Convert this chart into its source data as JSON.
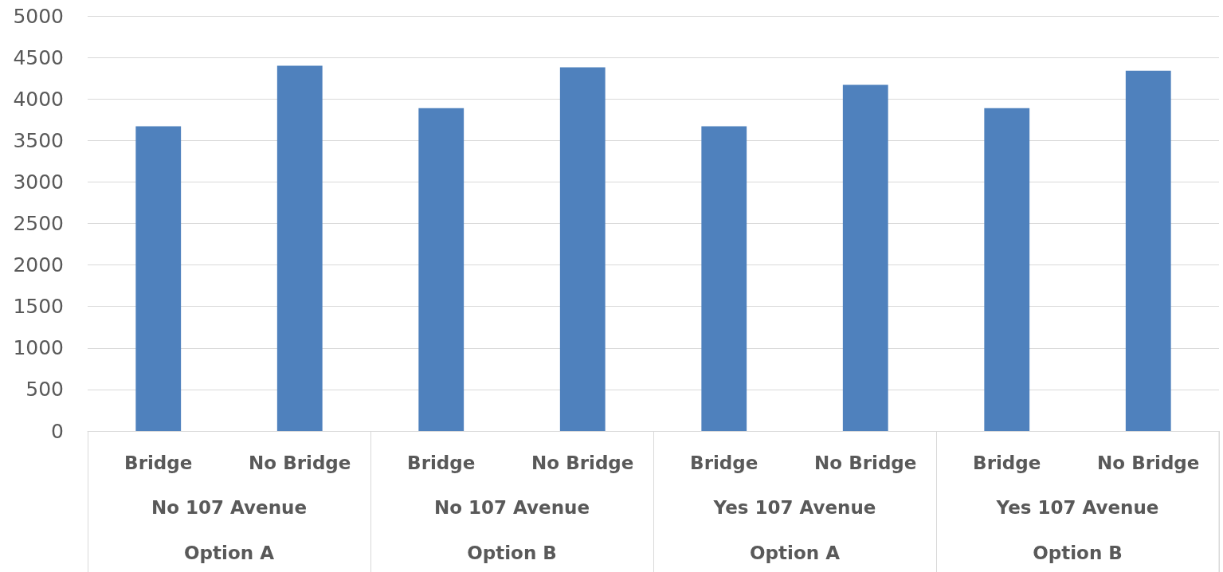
{
  "chart_data": {
    "type": "bar",
    "categories": [
      "Bridge",
      "No Bridge",
      "Bridge",
      "No Bridge",
      "Bridge",
      "No Bridge",
      "Bridge",
      "No Bridge"
    ],
    "values": [
      3670,
      4400,
      3890,
      4380,
      3670,
      4170,
      3890,
      4340
    ],
    "color": "#4f81bd",
    "annotations": [
      "No 107 Avenue",
      "No 107 Avenue",
      "Yes 107 Avenue",
      "Yes 107 Avenue",
      "Option A",
      "Option B",
      "Option A",
      "Option B"
    ],
    "ylim": [
      0,
      5000
    ],
    "yticks": [
      0,
      500,
      1000,
      1500,
      2000,
      2500,
      3000,
      3500,
      4000,
      4500,
      5000
    ],
    "grid": "y"
  }
}
